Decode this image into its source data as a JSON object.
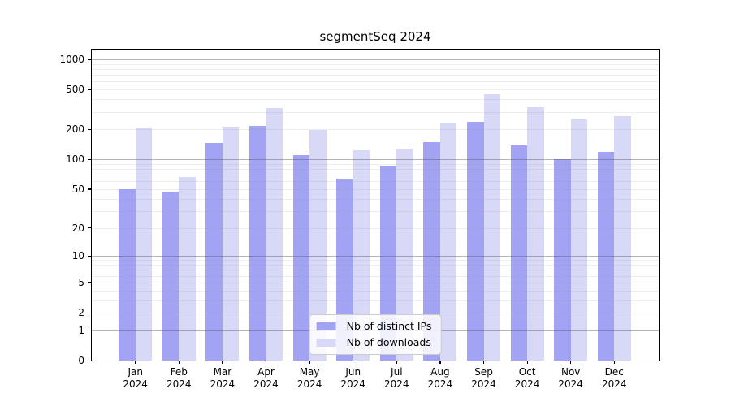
{
  "title": "segmentSeq 2024",
  "chart_data": {
    "type": "bar",
    "title": "segmentSeq 2024",
    "categories": [
      "Jan 2024",
      "Feb 2024",
      "Mar 2024",
      "Apr 2024",
      "May 2024",
      "Jun 2024",
      "Jul 2024",
      "Aug 2024",
      "Sep 2024",
      "Oct 2024",
      "Nov 2024",
      "Dec 2024"
    ],
    "series": [
      {
        "name": "Nb of distinct IPs",
        "color": "#a3a3f3",
        "values": [
          50,
          47,
          145,
          218,
          110,
          64,
          86,
          148,
          240,
          137,
          101,
          118
        ]
      },
      {
        "name": "Nb of downloads",
        "color": "#d8d8f7",
        "values": [
          204,
          66,
          209,
          325,
          196,
          123,
          127,
          230,
          445,
          334,
          252,
          270
        ]
      }
    ],
    "yscale": "log10(value+1)",
    "ylim": [
      0,
      1250
    ],
    "yticks": [
      0,
      1,
      2,
      5,
      10,
      20,
      50,
      100,
      200,
      500,
      1000
    ],
    "grid": "horizontal; dark lines at 1,10,100,1000; faint lines at 2-9,20-90,200-900",
    "legend_position": "lower center",
    "legend_entries": [
      "Nb of distinct IPs",
      "Nb of downloads"
    ]
  },
  "colors": {
    "background": "#ffffff",
    "bar_distinct_ips": "#a3a3f3",
    "bar_downloads": "#d8d8f7",
    "grid_major": "rgba(90,90,90,0.45)",
    "grid_minor": "rgba(150,150,150,0.16)",
    "spine": "#000000",
    "legend_border": "#cccccc",
    "text": "#000000"
  }
}
